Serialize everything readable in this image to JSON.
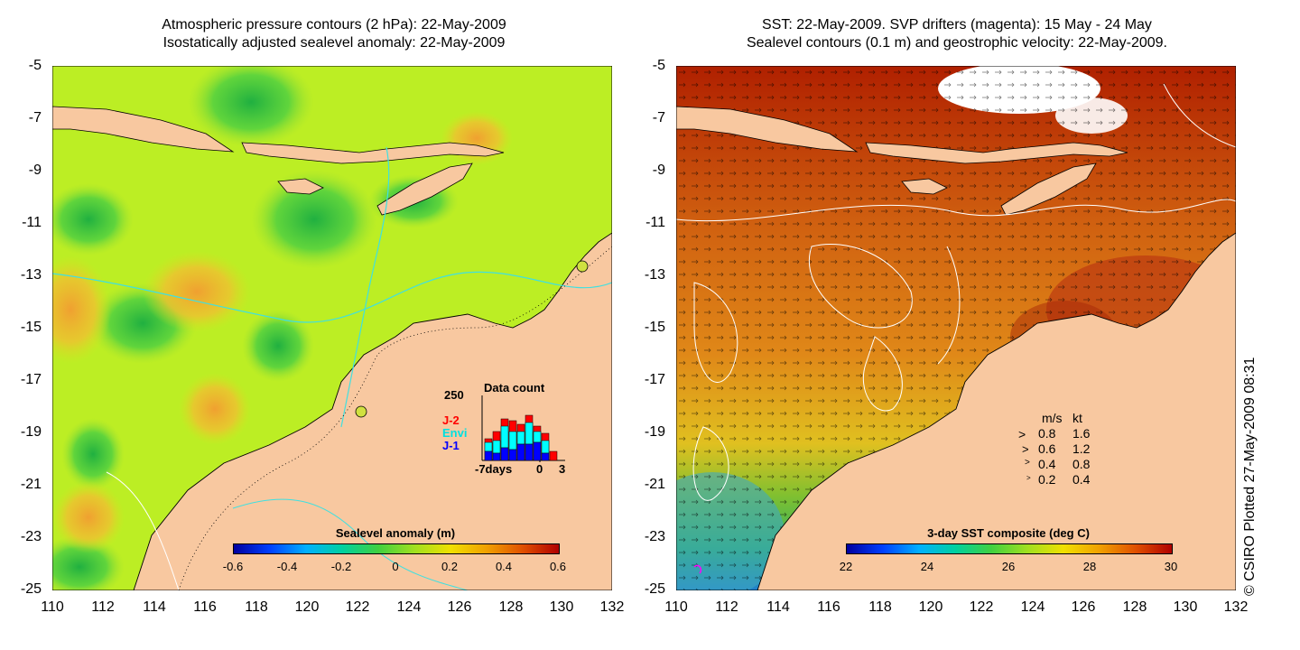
{
  "left_panel": {
    "title_line1": "Atmospheric pressure contours (2 hPa): 22-May-2009",
    "title_line2": "Isostatically adjusted sealevel anomaly: 22-May-2009",
    "colorbar_title": "Sealevel anomaly (m)",
    "colorbar_ticks": [
      "-0.6",
      "-0.4",
      "-0.2",
      "0",
      "0.2",
      "0.4",
      "0.6"
    ],
    "data_count": {
      "title": "Data count",
      "ymax_label": "250",
      "series": [
        {
          "name": "J-2",
          "color": "#ff0000"
        },
        {
          "name": "Envi",
          "color": "#00ffff"
        },
        {
          "name": "J-1",
          "color": "#0000ff"
        }
      ],
      "x_labels": [
        "-7days",
        "0",
        "3"
      ]
    }
  },
  "right_panel": {
    "title_line1": "SST: 22-May-2009. SVP drifters (magenta): 15 May - 24 May",
    "title_line2": "Sealevel contours (0.1 m) and geostrophic velocity: 22-May-2009.",
    "colorbar_title": "3-day SST composite (deg C)",
    "colorbar_ticks": [
      "22",
      "24",
      "26",
      "28",
      "30"
    ],
    "velocity_legend": {
      "header_ms": "m/s",
      "header_kt": "kt",
      "rows": [
        {
          "ms": "0.8",
          "kt": "1.6"
        },
        {
          "ms": "0.6",
          "kt": "1.2"
        },
        {
          "ms": "0.4",
          "kt": "0.8"
        },
        {
          "ms": "0.2",
          "kt": "0.4"
        }
      ]
    }
  },
  "axes": {
    "y_ticks": [
      "-5",
      "-7",
      "-9",
      "-11",
      "-13",
      "-15",
      "-17",
      "-19",
      "-21",
      "-23",
      "-25"
    ],
    "x_ticks": [
      "110",
      "112",
      "114",
      "116",
      "118",
      "120",
      "122",
      "124",
      "126",
      "128",
      "130",
      "132"
    ]
  },
  "copyright": "© CSIRO Plotted 27-May-2009 08:31",
  "colors": {
    "land": "#f8c8a0",
    "contour_cyan": "#40e0e0",
    "drifter": "#ff00ff"
  }
}
